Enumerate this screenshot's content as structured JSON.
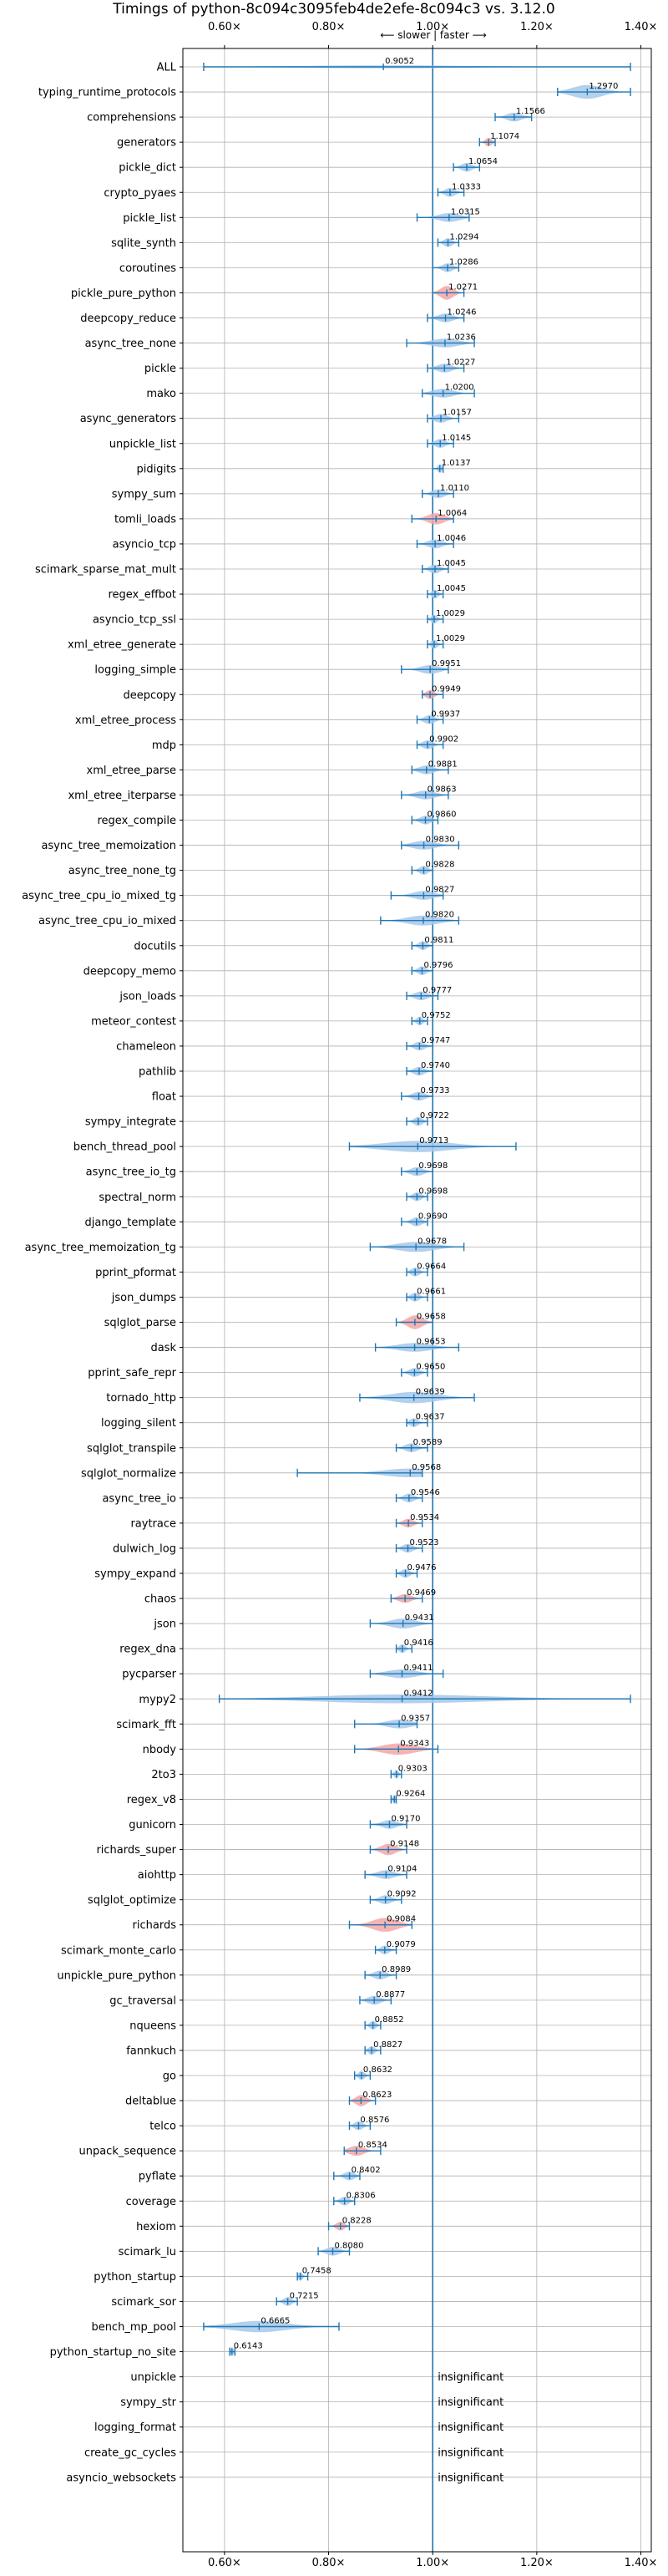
{
  "chart_data": {
    "type": "violin",
    "title": "Timings of python-8c094c3095feb4de2efe-8c094c3 vs. 3.12.0",
    "direction_label": "⟵ slower | faster ⟶",
    "xlim": [
      0.52,
      1.42
    ],
    "xticks": [
      0.6,
      0.8,
      1.0,
      1.2,
      1.4
    ],
    "xtick_labels": [
      "0.60×",
      "0.80×",
      "1.00×",
      "1.20×",
      "1.40×"
    ],
    "reference_x": 1.0,
    "grid": true,
    "colors": {
      "violin": "#a6c8ea",
      "highlight": "#f4a6a6",
      "errorbar": "#1f77b4",
      "grid": "#b0b0b0",
      "reference": "#1f77b4"
    },
    "series": [
      {
        "name": "ALL",
        "value": 0.9052,
        "lo": 0.56,
        "hi": 1.38,
        "width": 0.12,
        "insig": false,
        "hl": false
      },
      {
        "name": "typing_runtime_protocols",
        "value": 1.297,
        "lo": 1.24,
        "hi": 1.38,
        "width": 0.55,
        "insig": false,
        "hl": false
      },
      {
        "name": "comprehensions",
        "value": 1.1566,
        "lo": 1.12,
        "hi": 1.19,
        "width": 0.35,
        "insig": false,
        "hl": false
      },
      {
        "name": "generators",
        "value": 1.1074,
        "lo": 1.09,
        "hi": 1.12,
        "width": 0.35,
        "insig": false,
        "hl": true
      },
      {
        "name": "pickle_dict",
        "value": 1.0654,
        "lo": 1.04,
        "hi": 1.09,
        "width": 0.35,
        "insig": false,
        "hl": false
      },
      {
        "name": "crypto_pyaes",
        "value": 1.0333,
        "lo": 1.01,
        "hi": 1.06,
        "width": 0.35,
        "insig": false,
        "hl": false
      },
      {
        "name": "pickle_list",
        "value": 1.0315,
        "lo": 0.97,
        "hi": 1.07,
        "width": 0.35,
        "insig": false,
        "hl": false
      },
      {
        "name": "sqlite_synth",
        "value": 1.0294,
        "lo": 1.01,
        "hi": 1.05,
        "width": 0.35,
        "insig": false,
        "hl": false
      },
      {
        "name": "coroutines",
        "value": 1.0286,
        "lo": 1.0,
        "hi": 1.05,
        "width": 0.35,
        "insig": false,
        "hl": false
      },
      {
        "name": "pickle_pure_python",
        "value": 1.0271,
        "lo": 1.0,
        "hi": 1.06,
        "width": 0.55,
        "insig": false,
        "hl": true
      },
      {
        "name": "deepcopy_reduce",
        "value": 1.0246,
        "lo": 0.99,
        "hi": 1.06,
        "width": 0.35,
        "insig": false,
        "hl": false
      },
      {
        "name": "async_tree_none",
        "value": 1.0236,
        "lo": 0.95,
        "hi": 1.08,
        "width": 0.35,
        "insig": false,
        "hl": false
      },
      {
        "name": "pickle",
        "value": 1.0227,
        "lo": 0.99,
        "hi": 1.06,
        "width": 0.35,
        "insig": false,
        "hl": false
      },
      {
        "name": "mako",
        "value": 1.02,
        "lo": 0.98,
        "hi": 1.08,
        "width": 0.35,
        "insig": false,
        "hl": false
      },
      {
        "name": "async_generators",
        "value": 1.0157,
        "lo": 0.99,
        "hi": 1.05,
        "width": 0.35,
        "insig": false,
        "hl": false
      },
      {
        "name": "unpickle_list",
        "value": 1.0145,
        "lo": 0.99,
        "hi": 1.04,
        "width": 0.35,
        "insig": false,
        "hl": false
      },
      {
        "name": "pidigits",
        "value": 1.0137,
        "lo": 1.0,
        "hi": 1.02,
        "width": 0.35,
        "insig": false,
        "hl": false
      },
      {
        "name": "sympy_sum",
        "value": 1.011,
        "lo": 0.98,
        "hi": 1.04,
        "width": 0.35,
        "insig": false,
        "hl": false
      },
      {
        "name": "tomli_loads",
        "value": 1.0064,
        "lo": 0.96,
        "hi": 1.04,
        "width": 0.45,
        "insig": false,
        "hl": true
      },
      {
        "name": "asyncio_tcp",
        "value": 1.0046,
        "lo": 0.97,
        "hi": 1.04,
        "width": 0.35,
        "insig": false,
        "hl": false
      },
      {
        "name": "scimark_sparse_mat_mult",
        "value": 1.0045,
        "lo": 0.98,
        "hi": 1.03,
        "width": 0.35,
        "insig": false,
        "hl": false
      },
      {
        "name": "regex_effbot",
        "value": 1.0045,
        "lo": 0.99,
        "hi": 1.02,
        "width": 0.35,
        "insig": false,
        "hl": false
      },
      {
        "name": "asyncio_tcp_ssl",
        "value": 1.0029,
        "lo": 0.99,
        "hi": 1.02,
        "width": 0.35,
        "insig": false,
        "hl": false
      },
      {
        "name": "xml_etree_generate",
        "value": 1.0029,
        "lo": 0.99,
        "hi": 1.02,
        "width": 0.35,
        "insig": false,
        "hl": false
      },
      {
        "name": "logging_simple",
        "value": 0.9951,
        "lo": 0.94,
        "hi": 1.03,
        "width": 0.35,
        "insig": false,
        "hl": false
      },
      {
        "name": "deepcopy",
        "value": 0.9949,
        "lo": 0.98,
        "hi": 1.02,
        "width": 0.35,
        "insig": false,
        "hl": true
      },
      {
        "name": "xml_etree_process",
        "value": 0.9937,
        "lo": 0.97,
        "hi": 1.02,
        "width": 0.35,
        "insig": false,
        "hl": false
      },
      {
        "name": "mdp",
        "value": 0.9902,
        "lo": 0.97,
        "hi": 1.02,
        "width": 0.35,
        "insig": false,
        "hl": false
      },
      {
        "name": "xml_etree_parse",
        "value": 0.9881,
        "lo": 0.96,
        "hi": 1.03,
        "width": 0.35,
        "insig": false,
        "hl": false
      },
      {
        "name": "xml_etree_iterparse",
        "value": 0.9863,
        "lo": 0.94,
        "hi": 1.03,
        "width": 0.35,
        "insig": false,
        "hl": false
      },
      {
        "name": "regex_compile",
        "value": 0.986,
        "lo": 0.96,
        "hi": 1.01,
        "width": 0.35,
        "insig": false,
        "hl": false
      },
      {
        "name": "async_tree_memoization",
        "value": 0.983,
        "lo": 0.94,
        "hi": 1.05,
        "width": 0.35,
        "insig": false,
        "hl": false
      },
      {
        "name": "async_tree_none_tg",
        "value": 0.9828,
        "lo": 0.96,
        "hi": 1.0,
        "width": 0.35,
        "insig": false,
        "hl": false
      },
      {
        "name": "async_tree_cpu_io_mixed_tg",
        "value": 0.9827,
        "lo": 0.92,
        "hi": 1.02,
        "width": 0.35,
        "insig": false,
        "hl": false
      },
      {
        "name": "async_tree_cpu_io_mixed",
        "value": 0.982,
        "lo": 0.9,
        "hi": 1.05,
        "width": 0.4,
        "insig": false,
        "hl": false
      },
      {
        "name": "docutils",
        "value": 0.9811,
        "lo": 0.96,
        "hi": 1.0,
        "width": 0.35,
        "insig": false,
        "hl": false
      },
      {
        "name": "deepcopy_memo",
        "value": 0.9796,
        "lo": 0.96,
        "hi": 1.0,
        "width": 0.35,
        "insig": false,
        "hl": false
      },
      {
        "name": "json_loads",
        "value": 0.9777,
        "lo": 0.95,
        "hi": 1.01,
        "width": 0.35,
        "insig": false,
        "hl": false
      },
      {
        "name": "meteor_contest",
        "value": 0.9752,
        "lo": 0.96,
        "hi": 0.99,
        "width": 0.35,
        "insig": false,
        "hl": false
      },
      {
        "name": "chameleon",
        "value": 0.9747,
        "lo": 0.95,
        "hi": 1.0,
        "width": 0.35,
        "insig": false,
        "hl": false
      },
      {
        "name": "pathlib",
        "value": 0.974,
        "lo": 0.95,
        "hi": 1.0,
        "width": 0.35,
        "insig": false,
        "hl": false
      },
      {
        "name": "float",
        "value": 0.9733,
        "lo": 0.94,
        "hi": 1.0,
        "width": 0.35,
        "insig": false,
        "hl": false
      },
      {
        "name": "sympy_integrate",
        "value": 0.9722,
        "lo": 0.95,
        "hi": 0.99,
        "width": 0.35,
        "insig": false,
        "hl": false
      },
      {
        "name": "bench_thread_pool",
        "value": 0.9713,
        "lo": 0.84,
        "hi": 1.16,
        "width": 0.45,
        "insig": false,
        "hl": false
      },
      {
        "name": "async_tree_io_tg",
        "value": 0.9698,
        "lo": 0.94,
        "hi": 1.0,
        "width": 0.35,
        "insig": false,
        "hl": false
      },
      {
        "name": "spectral_norm",
        "value": 0.9698,
        "lo": 0.95,
        "hi": 0.99,
        "width": 0.35,
        "insig": false,
        "hl": false
      },
      {
        "name": "django_template",
        "value": 0.969,
        "lo": 0.94,
        "hi": 0.99,
        "width": 0.35,
        "insig": false,
        "hl": false
      },
      {
        "name": "async_tree_memoization_tg",
        "value": 0.9678,
        "lo": 0.88,
        "hi": 1.06,
        "width": 0.4,
        "insig": false,
        "hl": false
      },
      {
        "name": "pprint_pformat",
        "value": 0.9664,
        "lo": 0.95,
        "hi": 0.99,
        "width": 0.35,
        "insig": false,
        "hl": false
      },
      {
        "name": "json_dumps",
        "value": 0.9661,
        "lo": 0.95,
        "hi": 0.99,
        "width": 0.35,
        "insig": false,
        "hl": false
      },
      {
        "name": "sqlglot_parse",
        "value": 0.9658,
        "lo": 0.93,
        "hi": 1.0,
        "width": 0.55,
        "insig": false,
        "hl": true
      },
      {
        "name": "dask",
        "value": 0.9653,
        "lo": 0.89,
        "hi": 1.05,
        "width": 0.35,
        "insig": false,
        "hl": false
      },
      {
        "name": "pprint_safe_repr",
        "value": 0.965,
        "lo": 0.94,
        "hi": 0.99,
        "width": 0.35,
        "insig": false,
        "hl": false
      },
      {
        "name": "tornado_http",
        "value": 0.9639,
        "lo": 0.86,
        "hi": 1.08,
        "width": 0.45,
        "insig": false,
        "hl": false
      },
      {
        "name": "logging_silent",
        "value": 0.9637,
        "lo": 0.95,
        "hi": 0.99,
        "width": 0.35,
        "insig": false,
        "hl": false
      },
      {
        "name": "sqlglot_transpile",
        "value": 0.9589,
        "lo": 0.93,
        "hi": 0.99,
        "width": 0.35,
        "insig": false,
        "hl": false
      },
      {
        "name": "sqlglot_normalize",
        "value": 0.9568,
        "lo": 0.74,
        "hi": 0.98,
        "width": 0.35,
        "insig": false,
        "hl": false
      },
      {
        "name": "async_tree_io",
        "value": 0.9546,
        "lo": 0.93,
        "hi": 0.98,
        "width": 0.35,
        "insig": false,
        "hl": false
      },
      {
        "name": "raytrace",
        "value": 0.9534,
        "lo": 0.93,
        "hi": 0.98,
        "width": 0.35,
        "insig": false,
        "hl": true
      },
      {
        "name": "dulwich_log",
        "value": 0.9523,
        "lo": 0.93,
        "hi": 0.98,
        "width": 0.35,
        "insig": false,
        "hl": false
      },
      {
        "name": "sympy_expand",
        "value": 0.9476,
        "lo": 0.93,
        "hi": 0.97,
        "width": 0.35,
        "insig": false,
        "hl": false
      },
      {
        "name": "chaos",
        "value": 0.9469,
        "lo": 0.92,
        "hi": 0.98,
        "width": 0.35,
        "insig": false,
        "hl": true
      },
      {
        "name": "json",
        "value": 0.9431,
        "lo": 0.88,
        "hi": 1.0,
        "width": 0.4,
        "insig": false,
        "hl": false
      },
      {
        "name": "regex_dna",
        "value": 0.9416,
        "lo": 0.93,
        "hi": 0.96,
        "width": 0.35,
        "insig": false,
        "hl": false
      },
      {
        "name": "pycparser",
        "value": 0.9411,
        "lo": 0.88,
        "hi": 1.02,
        "width": 0.35,
        "insig": false,
        "hl": false
      },
      {
        "name": "mypy2",
        "value": 0.9412,
        "lo": 0.59,
        "hi": 1.38,
        "width": 0.35,
        "insig": false,
        "hl": false
      },
      {
        "name": "scimark_fft",
        "value": 0.9357,
        "lo": 0.85,
        "hi": 0.97,
        "width": 0.35,
        "insig": false,
        "hl": false
      },
      {
        "name": "nbody",
        "value": 0.9343,
        "lo": 0.85,
        "hi": 1.01,
        "width": 0.45,
        "insig": false,
        "hl": true
      },
      {
        "name": "2to3",
        "value": 0.9303,
        "lo": 0.92,
        "hi": 0.94,
        "width": 0.35,
        "insig": false,
        "hl": false
      },
      {
        "name": "regex_v8",
        "value": 0.9264,
        "lo": 0.92,
        "hi": 0.93,
        "width": 0.35,
        "insig": false,
        "hl": false
      },
      {
        "name": "gunicorn",
        "value": 0.917,
        "lo": 0.88,
        "hi": 0.95,
        "width": 0.35,
        "insig": false,
        "hl": false
      },
      {
        "name": "richards_super",
        "value": 0.9148,
        "lo": 0.88,
        "hi": 0.95,
        "width": 0.45,
        "insig": false,
        "hl": true
      },
      {
        "name": "aiohttp",
        "value": 0.9104,
        "lo": 0.87,
        "hi": 0.95,
        "width": 0.35,
        "insig": false,
        "hl": false
      },
      {
        "name": "sqlglot_optimize",
        "value": 0.9092,
        "lo": 0.88,
        "hi": 0.94,
        "width": 0.35,
        "insig": false,
        "hl": false
      },
      {
        "name": "richards",
        "value": 0.9084,
        "lo": 0.84,
        "hi": 0.96,
        "width": 0.55,
        "insig": false,
        "hl": true
      },
      {
        "name": "scimark_monte_carlo",
        "value": 0.9079,
        "lo": 0.89,
        "hi": 0.93,
        "width": 0.35,
        "insig": false,
        "hl": false
      },
      {
        "name": "unpickle_pure_python",
        "value": 0.8989,
        "lo": 0.87,
        "hi": 0.93,
        "width": 0.35,
        "insig": false,
        "hl": false
      },
      {
        "name": "gc_traversal",
        "value": 0.8877,
        "lo": 0.86,
        "hi": 0.92,
        "width": 0.35,
        "insig": false,
        "hl": false
      },
      {
        "name": "nqueens",
        "value": 0.8852,
        "lo": 0.87,
        "hi": 0.9,
        "width": 0.35,
        "insig": false,
        "hl": false
      },
      {
        "name": "fannkuch",
        "value": 0.8827,
        "lo": 0.87,
        "hi": 0.9,
        "width": 0.35,
        "insig": false,
        "hl": false
      },
      {
        "name": "go",
        "value": 0.8632,
        "lo": 0.85,
        "hi": 0.88,
        "width": 0.35,
        "insig": false,
        "hl": false
      },
      {
        "name": "deltablue",
        "value": 0.8623,
        "lo": 0.84,
        "hi": 0.89,
        "width": 0.45,
        "insig": false,
        "hl": true
      },
      {
        "name": "telco",
        "value": 0.8576,
        "lo": 0.84,
        "hi": 0.88,
        "width": 0.35,
        "insig": false,
        "hl": false
      },
      {
        "name": "unpack_sequence",
        "value": 0.8534,
        "lo": 0.83,
        "hi": 0.9,
        "width": 0.4,
        "insig": false,
        "hl": true
      },
      {
        "name": "pyflate",
        "value": 0.8402,
        "lo": 0.81,
        "hi": 0.86,
        "width": 0.35,
        "insig": false,
        "hl": false
      },
      {
        "name": "coverage",
        "value": 0.8306,
        "lo": 0.81,
        "hi": 0.85,
        "width": 0.35,
        "insig": false,
        "hl": false
      },
      {
        "name": "hexiom",
        "value": 0.8228,
        "lo": 0.8,
        "hi": 0.84,
        "width": 0.35,
        "insig": false,
        "hl": true
      },
      {
        "name": "scimark_lu",
        "value": 0.808,
        "lo": 0.78,
        "hi": 0.84,
        "width": 0.35,
        "insig": false,
        "hl": false
      },
      {
        "name": "python_startup",
        "value": 0.7458,
        "lo": 0.74,
        "hi": 0.76,
        "width": 0.35,
        "insig": false,
        "hl": false
      },
      {
        "name": "scimark_sor",
        "value": 0.7215,
        "lo": 0.7,
        "hi": 0.74,
        "width": 0.35,
        "insig": false,
        "hl": false
      },
      {
        "name": "bench_mp_pool",
        "value": 0.6665,
        "lo": 0.56,
        "hi": 0.82,
        "width": 0.45,
        "insig": false,
        "hl": false
      },
      {
        "name": "python_startup_no_site",
        "value": 0.6143,
        "lo": 0.61,
        "hi": 0.62,
        "width": 0.35,
        "insig": false,
        "hl": false
      },
      {
        "name": "unpickle",
        "value": null,
        "insig": true
      },
      {
        "name": "sympy_str",
        "value": null,
        "insig": true
      },
      {
        "name": "logging_format",
        "value": null,
        "insig": true
      },
      {
        "name": "create_gc_cycles",
        "value": null,
        "insig": true
      },
      {
        "name": "asyncio_websockets",
        "value": null,
        "insig": true
      }
    ],
    "insignificant_label": "insignificant"
  }
}
